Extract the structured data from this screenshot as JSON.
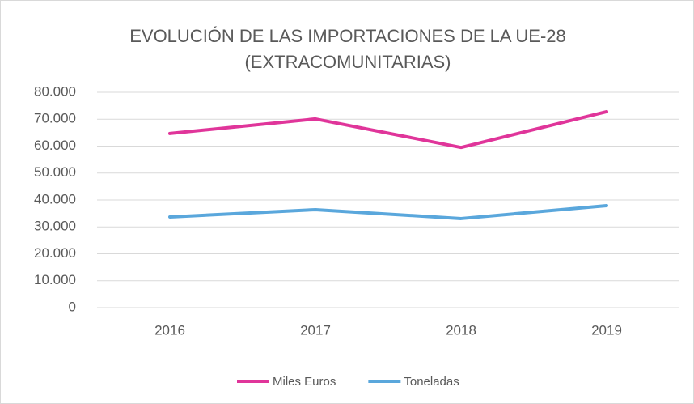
{
  "chart_data": {
    "type": "line",
    "title": [
      "EVOLUCIÓN DE LAS IMPORTACIONES DE LA UE-28",
      "(EXTRACOMUNITARIAS)"
    ],
    "categories": [
      "2016",
      "2017",
      "2018",
      "2019"
    ],
    "series": [
      {
        "name": "Miles Euros",
        "color": "#e0359a",
        "values": [
          64700,
          70100,
          59500,
          72800
        ]
      },
      {
        "name": "Toneladas",
        "color": "#5aa7dc",
        "values": [
          33700,
          36400,
          33100,
          37900
        ]
      }
    ],
    "ylim": [
      0,
      80000
    ],
    "yticks": [
      0,
      {
        "value": 10000,
        "label": "10.000"
      },
      {
        "value": 20000,
        "label": "20.000"
      },
      {
        "value": 30000,
        "label": "30.000"
      },
      {
        "value": 40000,
        "label": "40.000"
      },
      {
        "value": 50000,
        "label": "50.000"
      },
      {
        "value": 60000,
        "label": "60.000"
      },
      {
        "value": 70000,
        "label": "70.000"
      },
      {
        "value": 80000,
        "label": "80.000"
      }
    ],
    "grid": true,
    "legend": "bottom"
  }
}
